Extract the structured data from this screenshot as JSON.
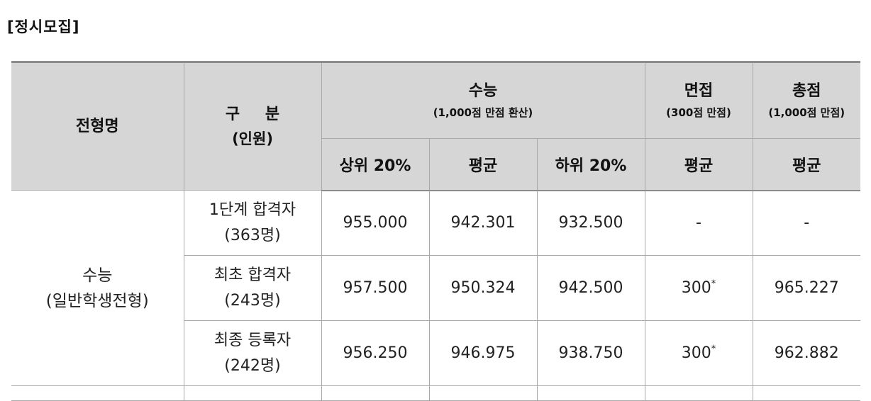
{
  "section_title": "[정시모집]",
  "header": {
    "col_type": "전형명",
    "col_category_main": "구 분",
    "col_category_sub": "(인원)",
    "group_suneung_main": "수능",
    "group_suneung_sub": "(1,000점 만점 환산)",
    "group_interview_main": "면접",
    "group_interview_sub": "(300점 만점)",
    "group_total_main": "총점",
    "group_total_sub": "(1,000점 만점)",
    "sub_top20": "상위 20%",
    "sub_avg": "평균",
    "sub_bottom20": "하위 20%",
    "sub_interview_avg": "평균",
    "sub_total_avg": "평균"
  },
  "group_label": {
    "line1": "수능",
    "line2": "(일반학생전형)"
  },
  "rows": [
    {
      "category": "1단계 합격자",
      "count": "(363명)",
      "top20": "955.000",
      "avg": "942.301",
      "bottom20": "932.500",
      "interview": "-",
      "interview_mark": "",
      "total": "-"
    },
    {
      "category": "최초 합격자",
      "count": "(243명)",
      "top20": "957.500",
      "avg": "950.324",
      "bottom20": "942.500",
      "interview": "300",
      "interview_mark": "*",
      "total": "965.227"
    },
    {
      "category": "최종 등록자",
      "count": "(242명)",
      "top20": "956.250",
      "avg": "946.975",
      "bottom20": "938.750",
      "interview": "300",
      "interview_mark": "*",
      "total": "962.882"
    }
  ]
}
